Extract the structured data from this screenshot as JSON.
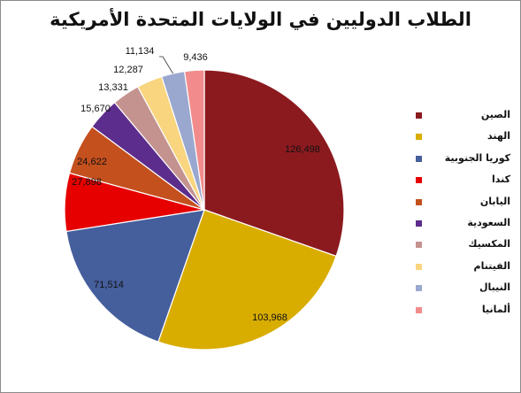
{
  "chart_data": {
    "type": "pie",
    "title": "الطلاب الدوليين في الولايات المتحدة الأمريكية",
    "legend_position": "right",
    "slices": [
      {
        "label": "الصين",
        "value": 126498,
        "display": "126,498",
        "color": "#8b1a1f"
      },
      {
        "label": "الهند",
        "value": 103968,
        "display": "103,968",
        "color": "#d9ad00"
      },
      {
        "label": "كوريا الجنوبية",
        "value": 71514,
        "display": "71,514",
        "color": "#455e9c"
      },
      {
        "label": "كندا",
        "value": 27898,
        "display": "27,898",
        "color": "#e60000"
      },
      {
        "label": "اليابان",
        "value": 24622,
        "display": "24,622",
        "color": "#c4501e"
      },
      {
        "label": "السعودية",
        "value": 15670,
        "display": "15,670",
        "color": "#5c2d8c"
      },
      {
        "label": "المكسيك",
        "value": 13331,
        "display": "13,331",
        "color": "#c49390"
      },
      {
        "label": "الفيتنام",
        "value": 12287,
        "display": "12,287",
        "color": "#f8d57e"
      },
      {
        "label": "النيبال",
        "value": 11134,
        "display": "11,134",
        "color": "#9aa8cf"
      },
      {
        "label": "ألمانيا",
        "value": 9436,
        "display": "9,436",
        "color": "#f28c8c"
      }
    ]
  }
}
